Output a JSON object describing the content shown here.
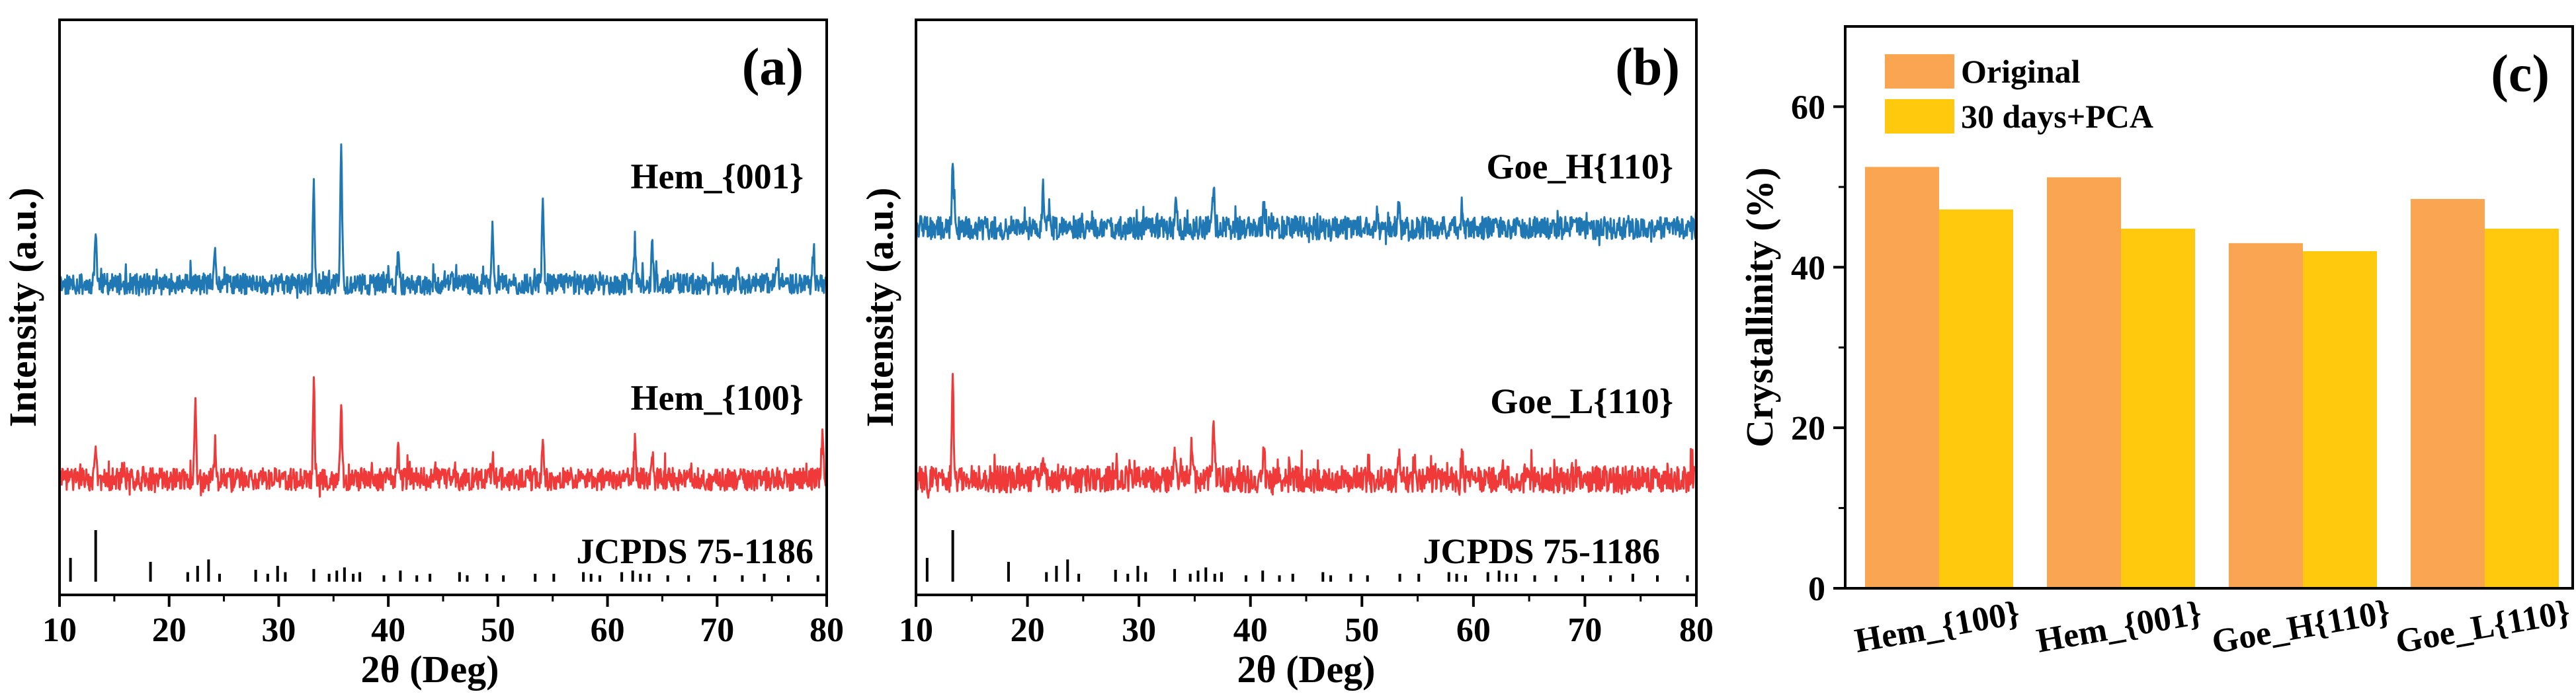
{
  "panels": [
    {
      "id": "a",
      "letter": "(a)",
      "type": "xrd",
      "xlabel": "2θ (Deg)",
      "ylabel": "Intensity (a.u.)",
      "xlim": [
        10,
        80
      ],
      "xticks": [
        10,
        20,
        30,
        40,
        50,
        60,
        70,
        80
      ],
      "colors": {
        "upper": "#1f77b4",
        "lower": "#f03a3a"
      },
      "traces": {
        "upper": {
          "label": "Hem_{001}",
          "seed": 11,
          "noise_amp": 0.55,
          "peaks": [
            {
              "x": 13.3,
              "h": 4.5
            },
            {
              "x": 24.2,
              "h": 2.5
            },
            {
              "x": 33.2,
              "h": 8.5
            },
            {
              "x": 35.7,
              "h": 11.5
            },
            {
              "x": 40.9,
              "h": 3.0
            },
            {
              "x": 49.5,
              "h": 5.0
            },
            {
              "x": 54.1,
              "h": 6.8
            },
            {
              "x": 62.5,
              "h": 3.2
            },
            {
              "x": 64.1,
              "h": 3.3
            },
            {
              "x": 71.9,
              "h": 1.8
            },
            {
              "x": 75.5,
              "h": 2.0
            },
            {
              "x": 78.8,
              "h": 3.0
            }
          ]
        },
        "lower": {
          "label": "Hem_{100}",
          "seed": 29,
          "noise_amp": 0.6,
          "peaks": [
            {
              "x": 13.3,
              "h": 2.0
            },
            {
              "x": 22.4,
              "h": 5.5
            },
            {
              "x": 24.2,
              "h": 3.0
            },
            {
              "x": 33.2,
              "h": 8.0
            },
            {
              "x": 35.7,
              "h": 6.5
            },
            {
              "x": 40.9,
              "h": 2.5
            },
            {
              "x": 49.5,
              "h": 2.0
            },
            {
              "x": 54.1,
              "h": 3.5
            },
            {
              "x": 62.5,
              "h": 3.0
            },
            {
              "x": 64.1,
              "h": 2.0
            },
            {
              "x": 79.6,
              "h": 3.5
            }
          ]
        }
      },
      "reference": {
        "label": "JCPDS 75-1186",
        "lines": [
          {
            "x": 11.0,
            "h": 0.3
          },
          {
            "x": 13.3,
            "h": 0.65
          },
          {
            "x": 18.3,
            "h": 0.25
          },
          {
            "x": 21.7,
            "h": 0.12
          },
          {
            "x": 22.6,
            "h": 0.2
          },
          {
            "x": 23.6,
            "h": 0.28
          },
          {
            "x": 24.6,
            "h": 0.1
          },
          {
            "x": 27.9,
            "h": 0.15
          },
          {
            "x": 29.0,
            "h": 0.1
          },
          {
            "x": 29.9,
            "h": 0.2
          },
          {
            "x": 30.6,
            "h": 0.12
          },
          {
            "x": 33.2,
            "h": 0.16
          },
          {
            "x": 34.6,
            "h": 0.1
          },
          {
            "x": 35.3,
            "h": 0.14
          },
          {
            "x": 36.0,
            "h": 0.18
          },
          {
            "x": 36.8,
            "h": 0.1
          },
          {
            "x": 37.4,
            "h": 0.12
          },
          {
            "x": 39.6,
            "h": 0.08
          },
          {
            "x": 41.1,
            "h": 0.14
          },
          {
            "x": 42.6,
            "h": 0.08
          },
          {
            "x": 43.8,
            "h": 0.1
          },
          {
            "x": 46.5,
            "h": 0.12
          },
          {
            "x": 47.2,
            "h": 0.08
          },
          {
            "x": 49.0,
            "h": 0.1
          },
          {
            "x": 50.5,
            "h": 0.08
          },
          {
            "x": 53.4,
            "h": 0.1
          },
          {
            "x": 55.1,
            "h": 0.1
          },
          {
            "x": 57.8,
            "h": 0.12
          },
          {
            "x": 58.5,
            "h": 0.1
          },
          {
            "x": 59.3,
            "h": 0.08
          },
          {
            "x": 61.3,
            "h": 0.12
          },
          {
            "x": 62.3,
            "h": 0.14
          },
          {
            "x": 63.0,
            "h": 0.1
          },
          {
            "x": 63.8,
            "h": 0.1
          },
          {
            "x": 65.5,
            "h": 0.08
          },
          {
            "x": 67.4,
            "h": 0.08
          },
          {
            "x": 69.8,
            "h": 0.08
          },
          {
            "x": 72.3,
            "h": 0.08
          },
          {
            "x": 74.3,
            "h": 0.1
          },
          {
            "x": 76.5,
            "h": 0.08
          },
          {
            "x": 79.2,
            "h": 0.08
          }
        ]
      }
    },
    {
      "id": "b",
      "letter": "(b)",
      "type": "xrd",
      "xlabel": "2θ (Deg)",
      "ylabel": "Intensity (a.u.)",
      "xlim": [
        10,
        80
      ],
      "xticks": [
        10,
        20,
        30,
        40,
        50,
        60,
        70,
        80
      ],
      "colors": {
        "upper": "#1f77b4",
        "lower": "#f03a3a"
      },
      "traces": {
        "upper": {
          "label": "Goe_H{110}",
          "seed": 47,
          "noise_amp": 0.6,
          "peaks": [
            {
              "x": 13.3,
              "h": 6.0
            },
            {
              "x": 21.4,
              "h": 3.2
            },
            {
              "x": 22.0,
              "h": 2.0
            },
            {
              "x": 33.3,
              "h": 3.0
            },
            {
              "x": 36.7,
              "h": 3.5
            },
            {
              "x": 41.2,
              "h": 1.8
            },
            {
              "x": 53.3,
              "h": 1.5
            },
            {
              "x": 59.0,
              "h": 2.0
            }
          ]
        },
        "lower": {
          "label": "Goe_L{110}",
          "seed": 83,
          "noise_amp": 0.7,
          "peaks": [
            {
              "x": 13.3,
              "h": 8.0
            },
            {
              "x": 21.4,
              "h": 2.0
            },
            {
              "x": 33.2,
              "h": 3.0
            },
            {
              "x": 34.7,
              "h": 2.5
            },
            {
              "x": 36.7,
              "h": 4.5
            },
            {
              "x": 41.2,
              "h": 2.5
            },
            {
              "x": 53.3,
              "h": 1.8
            },
            {
              "x": 59.0,
              "h": 2.2
            }
          ]
        }
      },
      "reference": {
        "label": "JCPDS 75-1186",
        "lines": [
          {
            "x": 11.0,
            "h": 0.3
          },
          {
            "x": 13.3,
            "h": 0.65
          },
          {
            "x": 18.3,
            "h": 0.25
          },
          {
            "x": 21.7,
            "h": 0.12
          },
          {
            "x": 22.6,
            "h": 0.2
          },
          {
            "x": 23.6,
            "h": 0.28
          },
          {
            "x": 24.6,
            "h": 0.1
          },
          {
            "x": 27.9,
            "h": 0.15
          },
          {
            "x": 29.0,
            "h": 0.1
          },
          {
            "x": 29.9,
            "h": 0.2
          },
          {
            "x": 30.6,
            "h": 0.12
          },
          {
            "x": 33.2,
            "h": 0.16
          },
          {
            "x": 34.6,
            "h": 0.1
          },
          {
            "x": 35.3,
            "h": 0.14
          },
          {
            "x": 36.0,
            "h": 0.18
          },
          {
            "x": 36.8,
            "h": 0.1
          },
          {
            "x": 37.4,
            "h": 0.12
          },
          {
            "x": 39.6,
            "h": 0.08
          },
          {
            "x": 41.1,
            "h": 0.14
          },
          {
            "x": 42.6,
            "h": 0.08
          },
          {
            "x": 43.8,
            "h": 0.1
          },
          {
            "x": 46.5,
            "h": 0.12
          },
          {
            "x": 47.2,
            "h": 0.08
          },
          {
            "x": 49.0,
            "h": 0.1
          },
          {
            "x": 50.5,
            "h": 0.08
          },
          {
            "x": 53.4,
            "h": 0.1
          },
          {
            "x": 55.1,
            "h": 0.1
          },
          {
            "x": 57.8,
            "h": 0.12
          },
          {
            "x": 58.5,
            "h": 0.1
          },
          {
            "x": 59.3,
            "h": 0.08
          },
          {
            "x": 61.3,
            "h": 0.12
          },
          {
            "x": 62.3,
            "h": 0.14
          },
          {
            "x": 63.0,
            "h": 0.1
          },
          {
            "x": 63.8,
            "h": 0.1
          },
          {
            "x": 65.5,
            "h": 0.08
          },
          {
            "x": 67.4,
            "h": 0.08
          },
          {
            "x": 69.8,
            "h": 0.08
          },
          {
            "x": 72.3,
            "h": 0.08
          },
          {
            "x": 74.3,
            "h": 0.1
          },
          {
            "x": 76.5,
            "h": 0.08
          },
          {
            "x": 79.2,
            "h": 0.08
          }
        ]
      }
    }
  ],
  "chart_data": [
    {
      "type": "line",
      "panel": "(a)",
      "title": "",
      "xlabel": "2θ (Deg)",
      "ylabel": "Intensity (a.u.)",
      "xlim": [
        10,
        80
      ],
      "series": [
        {
          "name": "Hem_{001}",
          "color": "#1f77b4",
          "peak_positions": [
            13.3,
            24.2,
            33.2,
            35.7,
            40.9,
            49.5,
            54.1,
            62.5,
            64.1,
            78.8
          ]
        },
        {
          "name": "Hem_{100}",
          "color": "#f03a3a",
          "peak_positions": [
            22.4,
            24.2,
            33.2,
            35.7,
            40.9,
            54.1,
            62.5,
            79.6
          ]
        },
        {
          "name": "JCPDS 75-1186",
          "color": "#000000",
          "kind": "reference-sticks"
        }
      ]
    },
    {
      "type": "line",
      "panel": "(b)",
      "title": "",
      "xlabel": "2θ (Deg)",
      "ylabel": "Intensity (a.u.)",
      "xlim": [
        10,
        80
      ],
      "series": [
        {
          "name": "Goe_H{110}",
          "color": "#1f77b4",
          "peak_positions": [
            13.3,
            21.4,
            33.3,
            36.7
          ]
        },
        {
          "name": "Goe_L{110}",
          "color": "#f03a3a",
          "peak_positions": [
            13.3,
            21.4,
            33.2,
            36.7,
            41.2
          ]
        },
        {
          "name": "JCPDS 75-1186",
          "color": "#000000",
          "kind": "reference-sticks"
        }
      ]
    },
    {
      "type": "bar",
      "panel": "(c)",
      "title": "",
      "xlabel": "",
      "ylabel": "Crystallinity (%)",
      "ylim": [
        0,
        70
      ],
      "yticks": [
        0,
        20,
        40,
        60
      ],
      "categories": [
        "Hem_{100}",
        "Hem_{001}",
        "Goe_H{110}",
        "Goe_L{110}"
      ],
      "series": [
        {
          "name": "Original",
          "color": "#f9a551",
          "values": [
            52.5,
            51.2,
            43.0,
            48.5
          ]
        },
        {
          "name": "30 days+PCA",
          "color": "#ffc90e",
          "values": [
            47.2,
            44.8,
            42.0,
            44.8
          ]
        }
      ],
      "legend_position": "top-left"
    }
  ],
  "panel_c": {
    "letter": "(c)"
  }
}
